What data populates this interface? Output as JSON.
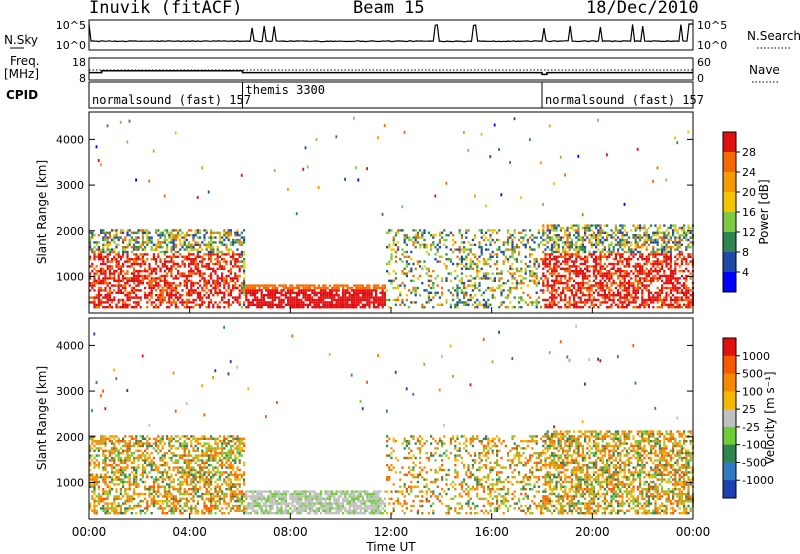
{
  "header": {
    "radar": "Inuvik (fitACF)",
    "beam": "Beam 15",
    "date": "18/Dec/2010"
  },
  "left_labels": {
    "nsky": "N.Sky",
    "freq_top": "Freq.",
    "freq_unit": "[MHz]",
    "cpid": "CPID"
  },
  "right_labels": {
    "nsearch": "N.Search",
    "nave": "Nave"
  },
  "chart_data": [
    {
      "type": "line",
      "panel": "noise",
      "series": [
        {
          "name": "N.Sky",
          "style": "solid"
        },
        {
          "name": "N.Search",
          "style": "dotted"
        }
      ],
      "y_ticks_left": [
        "10^5",
        "10^0"
      ],
      "y_ticks_right": [
        "10^5",
        "10^0"
      ],
      "scale": "log",
      "baseline_level": 10,
      "spike_level": 100000
    },
    {
      "type": "line",
      "panel": "frequency",
      "series": [
        {
          "name": "Freq.",
          "style": "solid",
          "x_hours": [
            0,
            0.2,
            0.5,
            6.0,
            6.1,
            12,
            18.0,
            18.2,
            18.6,
            21.5,
            24
          ],
          "y": [
            11,
            11,
            12,
            12,
            11,
            11,
            10,
            11,
            11,
            11,
            11
          ]
        },
        {
          "name": "Nave",
          "style": "dotted"
        }
      ],
      "y_ticks_left": [
        "18",
        "8"
      ],
      "y_ticks_right": [
        "60",
        "0"
      ]
    },
    {
      "type": "table",
      "panel": "cpid",
      "segments": [
        {
          "label": "normalsound (fast) 157",
          "start_hour": 0,
          "end_hour": 6.0
        },
        {
          "label": "themis 3300",
          "start_hour": 6.1,
          "end_hour": 18.0
        },
        {
          "label": "normalsound (fast) 157",
          "start_hour": 18.0,
          "end_hour": 24
        }
      ]
    },
    {
      "type": "heatmap",
      "panel": "power",
      "ylabel": "Slant Range [km]",
      "y_ticks": [
        "1000",
        "2000",
        "3000",
        "4000"
      ],
      "ylim": [
        200,
        4600
      ],
      "colorbar_label": "Power [dB]",
      "colorbar_ticks": [
        "4",
        "8",
        "12",
        "16",
        "20",
        "24",
        "28"
      ],
      "colors": [
        "#0000ff",
        "#1f4aa5",
        "#2f8450",
        "#7ec843",
        "#f5c400",
        "#f59a00",
        "#f56a00",
        "#e01010"
      ]
    },
    {
      "type": "heatmap",
      "panel": "velocity",
      "ylabel": "Slant Range [km]",
      "y_ticks": [
        "1000",
        "2000",
        "3000",
        "4000"
      ],
      "ylim": [
        200,
        4600
      ],
      "xlabel": "Time UT",
      "x_ticks": [
        "00:00",
        "04:00",
        "08:00",
        "12:00",
        "16:00",
        "20:00",
        "00:00"
      ],
      "colorbar_label": "Velocity  [m s⁻¹]",
      "colorbar_ticks": [
        "1000",
        "500",
        "100",
        "25",
        "-25",
        "-100",
        "-500",
        "-1000"
      ],
      "colors": [
        "#1f3fb0",
        "#2f7ac0",
        "#2f8450",
        "#6fcb3a",
        "#c0c0c0",
        "#f5b800",
        "#f58a00",
        "#f55a00",
        "#e01010"
      ]
    }
  ]
}
